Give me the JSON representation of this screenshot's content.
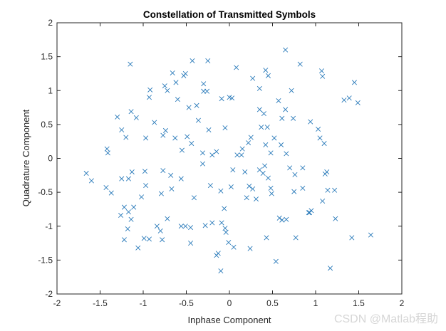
{
  "chart_data": {
    "type": "scatter",
    "title": "Constellation of Transmitted Symbols",
    "xlabel": "Inphase Component",
    "ylabel": "Quadrature Component",
    "xlim": [
      -2,
      2
    ],
    "ylim": [
      -2,
      2
    ],
    "xticks": [
      "-2",
      "-1.5",
      "-1",
      "-0.5",
      "0",
      "0.5",
      "1",
      "1.5",
      "2"
    ],
    "yticks": [
      "-2",
      "-1.5",
      "-1",
      "-0.5",
      "0",
      "0.5",
      "1",
      "1.5",
      "2"
    ],
    "marker": "x",
    "marker_color": "#2b7bba",
    "grid": false,
    "points": [
      [
        -1.15,
        1.39
      ],
      [
        -0.66,
        1.26
      ],
      [
        -0.53,
        1.22
      ],
      [
        -0.51,
        1.25
      ],
      [
        -0.43,
        1.44
      ],
      [
        -0.25,
        1.44
      ],
      [
        -0.3,
        1.1
      ],
      [
        -0.3,
        0.99
      ],
      [
        -0.26,
        0.99
      ],
      [
        -0.09,
        0.88
      ],
      [
        0,
        0.9
      ],
      [
        0.03,
        0.89
      ],
      [
        0.08,
        1.34
      ],
      [
        0.27,
        1.18
      ],
      [
        0.35,
        1.03
      ],
      [
        0.42,
        1.3
      ],
      [
        0.45,
        1.22
      ],
      [
        0.65,
        1.6
      ],
      [
        0.82,
        1.39
      ],
      [
        1.07,
        1.29
      ],
      [
        1.08,
        1.21
      ],
      [
        1.45,
        1.12
      ],
      [
        1.39,
        0.89
      ],
      [
        1.49,
        0.82
      ],
      [
        1.33,
        0.86
      ],
      [
        0.72,
        1.0
      ],
      [
        0.74,
        0.59
      ],
      [
        0.94,
        0.54
      ],
      [
        1.03,
        0.43
      ],
      [
        1.05,
        0.3
      ],
      [
        1.1,
        0.22
      ],
      [
        0.65,
        0.72
      ],
      [
        0.44,
        0.46
      ],
      [
        0.37,
        0.46
      ],
      [
        0.52,
        0.3
      ],
      [
        0.42,
        0.2
      ],
      [
        0.6,
        0.2
      ],
      [
        0.66,
        0.07
      ],
      [
        0.48,
        0.08
      ],
      [
        0.25,
        0.31
      ],
      [
        -0.05,
        0.45
      ],
      [
        -0.15,
        0.1
      ],
      [
        -0.2,
        0.05
      ],
      [
        -0.31,
        0.08
      ],
      [
        -0.44,
        0.22
      ],
      [
        -0.49,
        0.32
      ],
      [
        -0.55,
        0.12
      ],
      [
        -0.63,
        0.3
      ],
      [
        -0.74,
        0.41
      ],
      [
        -0.77,
        0.34
      ],
      [
        -0.87,
        0.53
      ],
      [
        -0.97,
        0.3
      ],
      [
        -1.08,
        0.6
      ],
      [
        -1.14,
        0.69
      ],
      [
        -1.25,
        0.42
      ],
      [
        -1.3,
        0.61
      ],
      [
        -1.42,
        0.14
      ],
      [
        -1.41,
        0.08
      ],
      [
        -1.66,
        -0.22
      ],
      [
        -1.6,
        -0.33
      ],
      [
        -1.43,
        -0.43
      ],
      [
        -1.37,
        -0.51
      ],
      [
        -1.22,
        -0.72
      ],
      [
        -1.26,
        -0.84
      ],
      [
        -1.17,
        -0.79
      ],
      [
        -1.14,
        -0.9
      ],
      [
        -1.18,
        -1.04
      ],
      [
        -1.22,
        -1.2
      ],
      [
        -1.06,
        -1.32
      ],
      [
        -0.99,
        -1.18
      ],
      [
        -0.93,
        -1.19
      ],
      [
        -0.84,
        -1.0
      ],
      [
        -0.8,
        -1.07
      ],
      [
        -0.78,
        -1.2
      ],
      [
        -0.72,
        -0.89
      ],
      [
        -0.56,
        -1.0
      ],
      [
        -0.51,
        -1.0
      ],
      [
        -0.45,
        -1.02
      ],
      [
        -0.45,
        -1.25
      ],
      [
        -0.28,
        -0.99
      ],
      [
        -0.2,
        -0.95
      ],
      [
        -0.09,
        -0.95
      ],
      [
        -0.05,
        -1.03
      ],
      [
        -0.04,
        -1.09
      ],
      [
        -0.01,
        -1.24
      ],
      [
        0.05,
        -1.31
      ],
      [
        -0.15,
        -1.43
      ],
      [
        -0.13,
        -1.4
      ],
      [
        -0.1,
        -1.66
      ],
      [
        0.24,
        -1.33
      ],
      [
        0.43,
        -1.17
      ],
      [
        0.54,
        -1.52
      ],
      [
        1.17,
        -1.62
      ],
      [
        1.42,
        -1.17
      ],
      [
        1.64,
        -1.13
      ],
      [
        1.23,
        -0.89
      ],
      [
        1.22,
        -0.47
      ],
      [
        1.14,
        -0.47
      ],
      [
        1.08,
        -0.63
      ],
      [
        0.95,
        -0.77
      ],
      [
        0.93,
        -0.8
      ],
      [
        0.92,
        -0.8
      ],
      [
        0.77,
        -1.17
      ],
      [
        0.66,
        -0.9
      ],
      [
        0.61,
        -0.91
      ],
      [
        0.58,
        -0.88
      ],
      [
        0.31,
        -0.6
      ],
      [
        0.23,
        -0.41
      ],
      [
        0.2,
        -0.58
      ],
      [
        0.02,
        -0.42
      ],
      [
        -0.06,
        -0.74
      ],
      [
        -0.1,
        -0.48
      ],
      [
        -0.22,
        -0.4
      ],
      [
        -0.31,
        -0.08
      ],
      [
        -0.41,
        -0.58
      ],
      [
        -0.56,
        -0.3
      ],
      [
        -0.67,
        -0.45
      ],
      [
        -0.79,
        -0.52
      ],
      [
        -0.97,
        -0.4
      ],
      [
        -1.02,
        -0.57
      ],
      [
        -1.11,
        -0.72
      ],
      [
        -0.98,
        -0.19
      ],
      [
        -0.77,
        -0.18
      ],
      [
        -0.68,
        -0.25
      ],
      [
        -1.13,
        -0.2
      ],
      [
        -1.17,
        -0.3
      ],
      [
        -1.25,
        -0.3
      ],
      [
        -0.36,
        0.56
      ],
      [
        -0.24,
        0.42
      ],
      [
        0.09,
        0.05
      ],
      [
        0.04,
        -0.17
      ],
      [
        0.41,
        -0.11
      ],
      [
        0.39,
        -0.22
      ],
      [
        0.45,
        -0.29
      ],
      [
        0.48,
        -0.44
      ],
      [
        0.49,
        -0.52
      ],
      [
        0.7,
        -0.14
      ],
      [
        0.76,
        -0.24
      ],
      [
        0.85,
        -0.44
      ],
      [
        0.75,
        -0.49
      ],
      [
        1.13,
        -0.2
      ],
      [
        1.11,
        -0.23
      ],
      [
        0.85,
        -0.14
      ],
      [
        0.35,
        0.72
      ],
      [
        0.57,
        0.85
      ],
      [
        0.61,
        0.59
      ],
      [
        0.4,
        0.66
      ],
      [
        -1.2,
        0.31
      ],
      [
        -0.6,
        0.87
      ],
      [
        -0.47,
        0.75
      ],
      [
        -0.38,
        0.78
      ],
      [
        -0.93,
        0.9
      ],
      [
        -0.92,
        1.01
      ],
      [
        -0.62,
        1.12
      ],
      [
        -0.75,
        1.07
      ],
      [
        -0.72,
        1.0
      ],
      [
        0.22,
        0.23
      ],
      [
        0.15,
        0.14
      ],
      [
        0.14,
        0.05
      ],
      [
        0.35,
        -0.17
      ],
      [
        0.18,
        -0.2
      ],
      [
        0.27,
        -0.45
      ]
    ]
  },
  "watermark": "CSDN @Matlab程助",
  "colors": {
    "marker": "#2b7bba",
    "axes": "#262626",
    "background": "#ffffff"
  }
}
